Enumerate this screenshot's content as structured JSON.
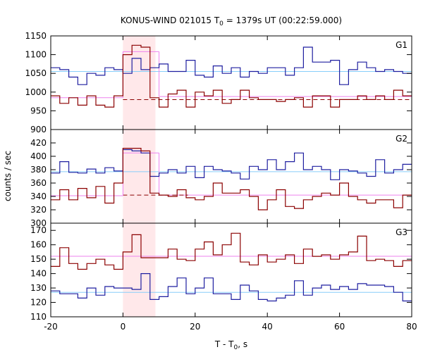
{
  "chart_data": {
    "type": "line",
    "title": {
      "main": "KONUS-WIND 021015 T",
      "sub": "0",
      "rest": " = 1379s UT (00:22:59.000)"
    },
    "xlabel": {
      "main": "T - T",
      "sub": "0",
      "rest": ", s"
    },
    "ylabel": "counts / sec",
    "xlim": [
      -20,
      80
    ],
    "x_ticks": [
      -20,
      0,
      20,
      40,
      60,
      80
    ],
    "highlight_interval": [
      0,
      9
    ],
    "bin_edges": [
      -20,
      -17.5,
      -15,
      -12.5,
      -10,
      -7.5,
      -5,
      -2.5,
      0,
      2.5,
      5,
      7.5,
      10,
      12.5,
      15,
      17.5,
      20,
      22.5,
      25,
      27.5,
      30,
      32.5,
      35,
      37.5,
      40,
      42.5,
      45,
      47.5,
      50,
      52.5,
      55,
      57.5,
      60,
      62.5,
      65,
      67.5,
      70,
      72.5,
      75,
      77.5,
      80
    ],
    "colors": {
      "blue": "#1f1fa0",
      "red": "#8b0000",
      "cyan": "#87cefa",
      "pink": "#ee82ee",
      "shade": "#ffe4e6"
    },
    "panels": [
      {
        "label": "G1",
        "ylim": [
          900,
          1150
        ],
        "y_ticks": [
          900,
          950,
          1000,
          1050,
          1100,
          1150
        ],
        "series": [
          {
            "color": "blue",
            "values": [
              1065,
              1060,
              1040,
              1020,
              1050,
              1045,
              1065,
              1060,
              1050,
              1090,
              1060,
              1065,
              1075,
              1055,
              1055,
              1085,
              1045,
              1040,
              1070,
              1050,
              1065,
              1040,
              1055,
              1050,
              1065,
              1065,
              1045,
              1065,
              1120,
              1080,
              1080,
              1085,
              1020,
              1060,
              1080,
              1065,
              1055,
              1060,
              1055,
              1050
            ]
          },
          {
            "color": "red",
            "values": [
              990,
              970,
              985,
              965,
              990,
              965,
              960,
              990,
              1100,
              1125,
              1120,
              985,
              960,
              995,
              1005,
              960,
              1000,
              990,
              1005,
              970,
              980,
              1005,
              985,
              980,
              980,
              975,
              980,
              985,
              960,
              990,
              990,
              960,
              980,
              980,
              990,
              980,
              990,
              980,
              1005,
              990
            ]
          }
        ],
        "levels": [
          {
            "color": "cyan",
            "style": "solid",
            "x": [
              -20,
              80
            ],
            "y": 1055
          },
          {
            "color": "pink",
            "style": "solid",
            "x": [
              -20,
              0
            ],
            "y": 985
          },
          {
            "color": "pink",
            "style": "solid",
            "x": [
              0,
              10
            ],
            "y": 1108
          },
          {
            "color": "pink",
            "style": "solid",
            "x": [
              10,
              80
            ],
            "y": 988
          },
          {
            "color": "red",
            "style": "dashed",
            "x": [
              0,
              80
            ],
            "y": 980
          }
        ]
      },
      {
        "label": "G2",
        "ylim": [
          300,
          440
        ],
        "y_ticks": [
          300,
          320,
          340,
          360,
          380,
          400,
          420
        ],
        "series": [
          {
            "color": "blue",
            "values": [
              375,
              392,
              376,
              375,
              381,
              375,
              383,
              378,
              410,
              408,
              405,
              370,
              375,
              380,
              375,
              385,
              368,
              385,
              380,
              378,
              375,
              366,
              385,
              380,
              395,
              380,
              392,
              405,
              380,
              385,
              380,
              365,
              380,
              378,
              375,
              370,
              395,
              375,
              380,
              388
            ]
          },
          {
            "color": "red",
            "values": [
              335,
              350,
              335,
              352,
              338,
              355,
              330,
              360,
              412,
              412,
              408,
              345,
              342,
              340,
              350,
              338,
              335,
              340,
              360,
              345,
              345,
              350,
              340,
              320,
              335,
              350,
              325,
              322,
              335,
              340,
              345,
              342,
              360,
              340,
              335,
              330,
              335,
              335,
              323,
              342
            ]
          }
        ],
        "levels": [
          {
            "color": "cyan",
            "style": "solid",
            "x": [
              -20,
              80
            ],
            "y": 377
          },
          {
            "color": "pink",
            "style": "solid",
            "x": [
              -20,
              0
            ],
            "y": 341
          },
          {
            "color": "pink",
            "style": "solid",
            "x": [
              0,
              10
            ],
            "y": 405
          },
          {
            "color": "pink",
            "style": "solid",
            "x": [
              10,
              80
            ],
            "y": 342
          },
          {
            "color": "red",
            "style": "dashed",
            "x": [
              0,
              18
            ],
            "y": 342
          }
        ]
      },
      {
        "label": "G3",
        "ylim": [
          110,
          175
        ],
        "y_ticks": [
          110,
          120,
          130,
          140,
          150,
          160,
          170
        ],
        "series": [
          {
            "color": "blue",
            "values": [
              128,
              126,
              126,
              123,
              130,
              125,
              131,
              130,
              130,
              129,
              140,
              122,
              124,
              131,
              137,
              126,
              130,
              137,
              126,
              126,
              122,
              132,
              128,
              122,
              121,
              123,
              125,
              135,
              125,
              130,
              132,
              129,
              131,
              129,
              133,
              132,
              132,
              131,
              127,
              121
            ]
          },
          {
            "color": "red",
            "values": [
              145,
              158,
              147,
              143,
              147,
              150,
              146,
              143,
              155,
              167,
              151,
              151,
              151,
              157,
              150,
              149,
              157,
              162,
              153,
              160,
              168,
              148,
              146,
              153,
              148,
              150,
              153,
              147,
              157,
              152,
              153,
              150,
              153,
              155,
              166,
              149,
              150,
              149,
              145,
              149
            ]
          }
        ],
        "levels": [
          {
            "color": "cyan",
            "style": "solid",
            "x": [
              -20,
              80
            ],
            "y": 127
          },
          {
            "color": "pink",
            "style": "solid",
            "x": [
              -20,
              80
            ],
            "y": 152
          }
        ]
      }
    ]
  }
}
